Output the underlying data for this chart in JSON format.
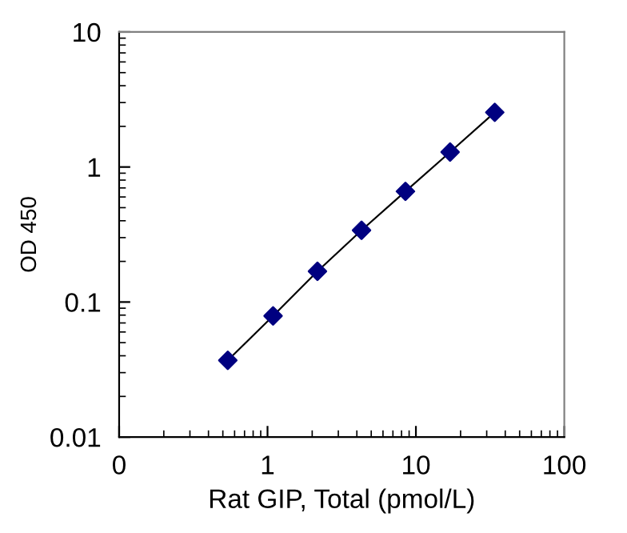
{
  "chart_data": {
    "type": "scatter",
    "xlabel": "Rat GIP, Total (pmol/L)",
    "ylabel": "OD 450",
    "log": "xy",
    "x": [
      0.54,
      1.09,
      2.17,
      4.3,
      8.5,
      17,
      34
    ],
    "series": [
      {
        "color": "#000080",
        "values": [
          0.037,
          0.079,
          0.169,
          0.34,
          0.66,
          1.29,
          2.54
        ],
        "marker": "diamond"
      },
      {
        "type": "line",
        "color": "#000000",
        "values": [
          0.037,
          0.079,
          0.169,
          0.34,
          0.66,
          1.29,
          2.54
        ],
        "line_style": "solid",
        "marker": "none"
      }
    ],
    "xlim": [
      0.1,
      100
    ],
    "xticks": [
      {
        "value": 0.1,
        "label": "0"
      },
      1,
      10,
      100
    ],
    "ylim": [
      0.01,
      10
    ],
    "yticks": [
      0.01,
      0.1,
      1,
      10
    ],
    "grid": false,
    "legend": false
  }
}
